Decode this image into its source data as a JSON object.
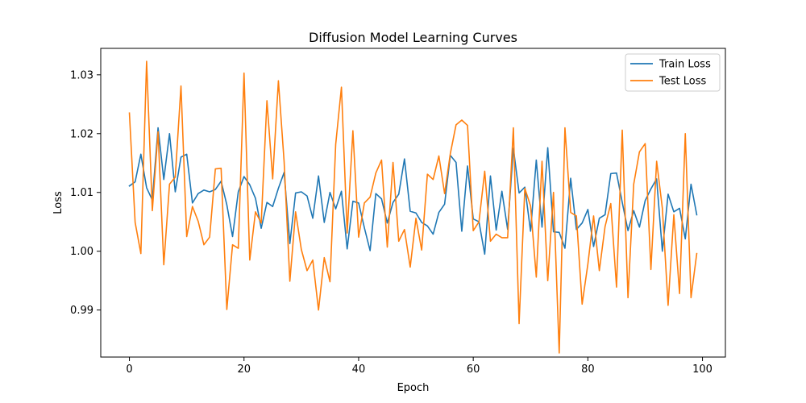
{
  "chart_data": {
    "type": "line",
    "title": "Diffusion Model Learning Curves",
    "xlabel": "Epoch",
    "ylabel": "Loss",
    "xlim": [
      -5,
      104
    ],
    "ylim": [
      0.982,
      1.0345
    ],
    "xticks": [
      0,
      20,
      40,
      60,
      80,
      100
    ],
    "xtick_labels": [
      "0",
      "20",
      "40",
      "60",
      "80",
      "100"
    ],
    "yticks": [
      0.99,
      1.0,
      1.01,
      1.02,
      1.03
    ],
    "ytick_labels": [
      "0.99",
      "1.00",
      "1.01",
      "1.02",
      "1.03"
    ],
    "grid": false,
    "legend": "top-right",
    "series": [
      {
        "name": "Train Loss",
        "color": "#1f77b4",
        "x": [
          0,
          1,
          2,
          3,
          4,
          5,
          6,
          7,
          8,
          9,
          10,
          11,
          12,
          13,
          14,
          15,
          16,
          17,
          18,
          19,
          20,
          21,
          22,
          23,
          24,
          25,
          26,
          27,
          28,
          29,
          30,
          31,
          32,
          33,
          34,
          35,
          36,
          37,
          38,
          39,
          40,
          41,
          42,
          43,
          44,
          45,
          46,
          47,
          48,
          49,
          50,
          51,
          52,
          53,
          54,
          55,
          56,
          57,
          58,
          59,
          60,
          61,
          62,
          63,
          64,
          65,
          66,
          67,
          68,
          69,
          70,
          71,
          72,
          73,
          74,
          75,
          76,
          77,
          78,
          79,
          80,
          81,
          82,
          83,
          84,
          85,
          86,
          87,
          88,
          89,
          90,
          91,
          92,
          93,
          94,
          95,
          96,
          97,
          98,
          99
        ],
        "values": [
          1.0111,
          1.0118,
          1.0165,
          1.0108,
          1.0087,
          1.021,
          1.0122,
          1.02,
          1.0101,
          1.016,
          1.0165,
          1.0082,
          1.0098,
          1.0104,
          1.0101,
          1.0105,
          1.0119,
          1.0079,
          1.0025,
          1.0101,
          1.0127,
          1.0113,
          1.009,
          1.0039,
          1.0083,
          1.0076,
          1.0107,
          1.0134,
          1.0013,
          1.0099,
          1.0101,
          1.0094,
          1.0056,
          1.0128,
          1.0049,
          1.01,
          1.0072,
          1.0102,
          1.0004,
          1.0085,
          1.0082,
          1.004,
          1.0001,
          1.0098,
          1.0089,
          1.0048,
          1.0083,
          1.0097,
          1.0157,
          1.0068,
          1.0065,
          1.0049,
          1.0043,
          1.0029,
          1.0066,
          1.008,
          1.0163,
          1.0151,
          1.0034,
          1.0145,
          1.0055,
          1.005,
          0.9995,
          1.0128,
          1.0036,
          1.0102,
          1.0037,
          1.0175,
          1.0099,
          1.0109,
          1.0034,
          1.0155,
          1.0041,
          1.0176,
          1.0033,
          1.0032,
          1.0005,
          1.0124,
          1.0037,
          1.0048,
          1.0071,
          1.0008,
          1.0056,
          1.0062,
          1.0132,
          1.0133,
          1.0083,
          1.0035,
          1.0069,
          1.0041,
          1.0086,
          1.0106,
          1.0123,
          1.0,
          1.0097,
          1.0067,
          1.0073,
          1.0021,
          1.0114,
          1.0062
        ]
      },
      {
        "name": "Test Loss",
        "color": "#ff7f0e",
        "x": [
          0,
          1,
          2,
          3,
          4,
          5,
          6,
          7,
          8,
          9,
          10,
          11,
          12,
          13,
          14,
          15,
          16,
          17,
          18,
          19,
          20,
          21,
          22,
          23,
          24,
          25,
          26,
          27,
          28,
          29,
          30,
          31,
          32,
          33,
          34,
          35,
          36,
          37,
          38,
          39,
          40,
          41,
          42,
          43,
          44,
          45,
          46,
          47,
          48,
          49,
          50,
          51,
          52,
          53,
          54,
          55,
          56,
          57,
          58,
          59,
          60,
          61,
          62,
          63,
          64,
          65,
          66,
          67,
          68,
          69,
          70,
          71,
          72,
          73,
          74,
          75,
          76,
          77,
          78,
          79,
          80,
          81,
          82,
          83,
          84,
          85,
          86,
          87,
          88,
          89,
          90,
          91,
          92,
          93,
          94,
          95,
          96,
          97,
          98,
          99
        ],
        "values": [
          1.0235,
          1.0049,
          0.9996,
          1.0323,
          1.0069,
          1.0203,
          0.9977,
          1.0114,
          1.0126,
          1.0281,
          1.0025,
          1.0076,
          1.0051,
          1.0011,
          1.0024,
          1.014,
          1.0141,
          0.9901,
          1.0011,
          1.0005,
          1.0303,
          0.9985,
          1.0067,
          1.0048,
          1.0256,
          1.0123,
          1.029,
          1.0152,
          0.9949,
          1.0067,
          1.0003,
          0.9967,
          0.9985,
          0.99,
          0.9989,
          0.9948,
          1.0182,
          1.0279,
          1.0031,
          1.0205,
          1.0024,
          1.0082,
          1.0092,
          1.0133,
          1.0155,
          1.0007,
          1.0151,
          1.0017,
          1.0037,
          0.9973,
          1.0056,
          1.0002,
          1.0131,
          1.0122,
          1.0162,
          1.0098,
          1.0166,
          1.0215,
          1.0223,
          1.0214,
          1.0035,
          1.005,
          1.0136,
          1.0017,
          1.0029,
          1.0023,
          1.0023,
          1.021,
          0.9877,
          1.0107,
          1.0077,
          0.9956,
          1.0153,
          0.995,
          1.01,
          0.9827,
          1.021,
          1.0066,
          1.006,
          0.991,
          0.9978,
          1.006,
          0.9967,
          1.0042,
          1.0081,
          0.9939,
          1.0206,
          0.9921,
          1.0114,
          1.0169,
          1.0183,
          0.9969,
          1.0153,
          1.0073,
          0.9908,
          1.0062,
          0.9928,
          1.02,
          0.9921,
          0.9996
        ]
      }
    ]
  }
}
